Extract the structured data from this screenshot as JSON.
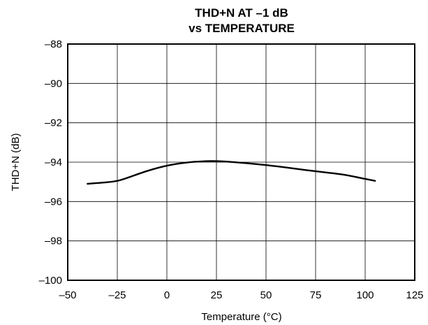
{
  "chart_data": {
    "type": "line",
    "title": [
      "THD+N AT –1 dB",
      "vs TEMPERATURE"
    ],
    "xlabel": "Temperature (°C)",
    "ylabel": "THD+N (dB)",
    "xlim": [
      -50,
      125
    ],
    "ylim": [
      -100,
      -88
    ],
    "xticks": [
      -50,
      -25,
      0,
      25,
      50,
      75,
      100,
      125
    ],
    "yticks": [
      -88,
      -90,
      -92,
      -94,
      -96,
      -98,
      -100
    ],
    "xtick_labels": [
      "–50",
      "–25",
      "0",
      "25",
      "50",
      "75",
      "100",
      "125"
    ],
    "ytick_labels": [
      "–88",
      "–90",
      "–92",
      "–94",
      "–96",
      "–98",
      "–100"
    ],
    "grid": true,
    "series": [
      {
        "x": [
          -40,
          -30,
          -25,
          -20,
          -10,
          0,
          10,
          20,
          25,
          30,
          40,
          50,
          60,
          70,
          80,
          90,
          100,
          105
        ],
        "y": [
          -95.1,
          -95.02,
          -94.95,
          -94.8,
          -94.45,
          -94.18,
          -94.02,
          -93.95,
          -93.95,
          -93.97,
          -94.05,
          -94.15,
          -94.27,
          -94.4,
          -94.52,
          -94.65,
          -94.85,
          -94.95
        ]
      }
    ]
  }
}
